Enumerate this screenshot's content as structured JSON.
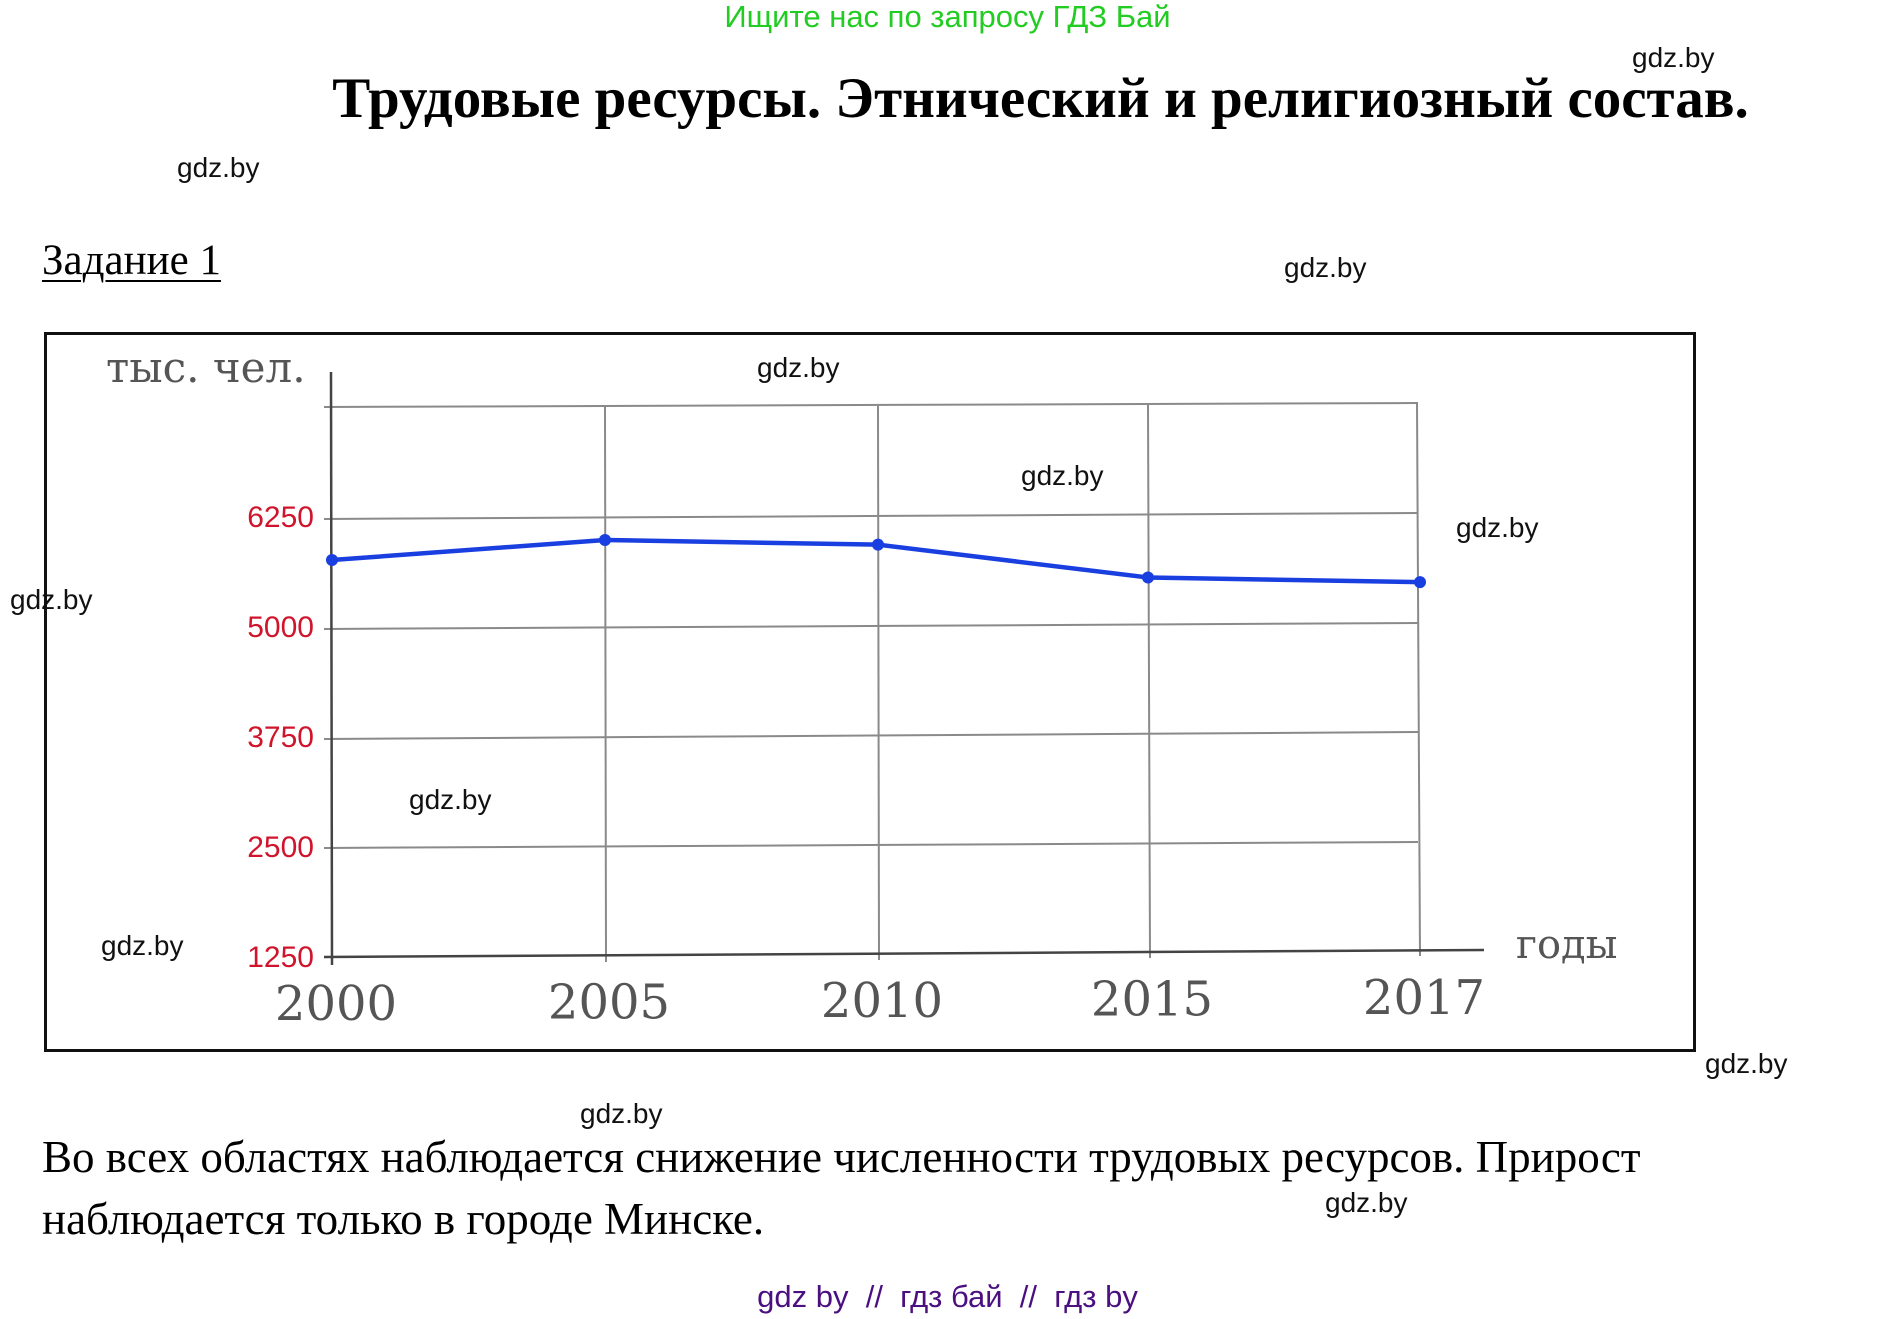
{
  "promo_banner": {
    "text": "Ищите нас по запросу ГДЗ Бай",
    "color": "#22cc22"
  },
  "title": "Трудовые ресурсы. Этнический и религиозный состав.",
  "task_label": "Задание 1",
  "watermarks": [
    "gdz.by",
    "gdz.by",
    "gdz.by",
    "gdz.by",
    "gdz.by",
    "gdz.by",
    "gdz.by",
    "gdz.by",
    "gdz.by",
    "gdz.by",
    "gdz.by",
    "gdz.by"
  ],
  "answer_text": "Во всех областях наблюдается снижение численности трудовых ресурсов. Прирост наблюдается только в городе Минске.",
  "footer": {
    "text": "gdz by  //  гдз бай  //  гдз by",
    "color": "#4b0f80"
  },
  "chart_data": {
    "type": "line",
    "title": "",
    "xlabel": "годы",
    "ylabel": "тыс. чел.",
    "categories": [
      "2000",
      "2005",
      "2010",
      "2015",
      "2017"
    ],
    "series": [
      {
        "name": "Трудовые ресурсы",
        "values": [
          5750,
          5960,
          5890,
          5500,
          5430
        ],
        "color": "#1a3fe0"
      }
    ],
    "yticks": [
      1250,
      2500,
      3750,
      5000,
      6250
    ],
    "ytick_color": "#d0142c",
    "ylim": [
      1250,
      7500
    ],
    "grid": true,
    "legend": "none"
  }
}
